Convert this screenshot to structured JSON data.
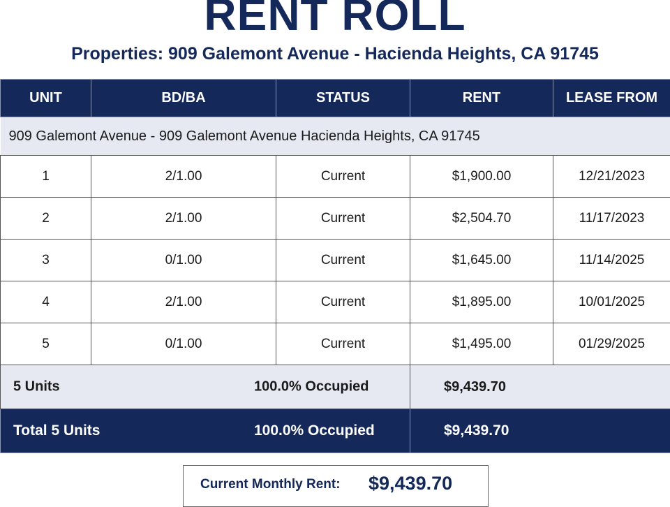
{
  "header": {
    "title": "RENT ROLL",
    "subtitle": "Properties: 909 Galemont Avenue - Hacienda Heights, CA 91745"
  },
  "table": {
    "columns": [
      "UNIT",
      "BD/BA",
      "STATUS",
      "RENT",
      "LEASE FROM"
    ],
    "group": "909 Galemont Avenue - 909 Galemont Avenue Hacienda Heights, CA 91745",
    "rows": [
      [
        "1",
        "2/1.00",
        "Current",
        "$1,900.00",
        "12/21/2023"
      ],
      [
        "2",
        "2/1.00",
        "Current",
        "$2,504.70",
        "11/17/2023"
      ],
      [
        "3",
        "0/1.00",
        "Current",
        "$1,645.00",
        "11/14/2025"
      ],
      [
        "4",
        "2/1.00",
        "Current",
        "$1,895.00",
        "10/01/2025"
      ],
      [
        "5",
        "0/1.00",
        "Current",
        "$1,495.00",
        "01/29/2025"
      ]
    ],
    "subtotal": {
      "label": "5 Units",
      "occupancy": "100.0% Occupied",
      "rent": "$9,439.70"
    },
    "total": {
      "label": "Total 5 Units",
      "occupancy": "100.0% Occupied",
      "rent": "$9,439.70"
    }
  },
  "summary": {
    "label": "Current Monthly Rent:",
    "value": "$9,439.70"
  }
}
